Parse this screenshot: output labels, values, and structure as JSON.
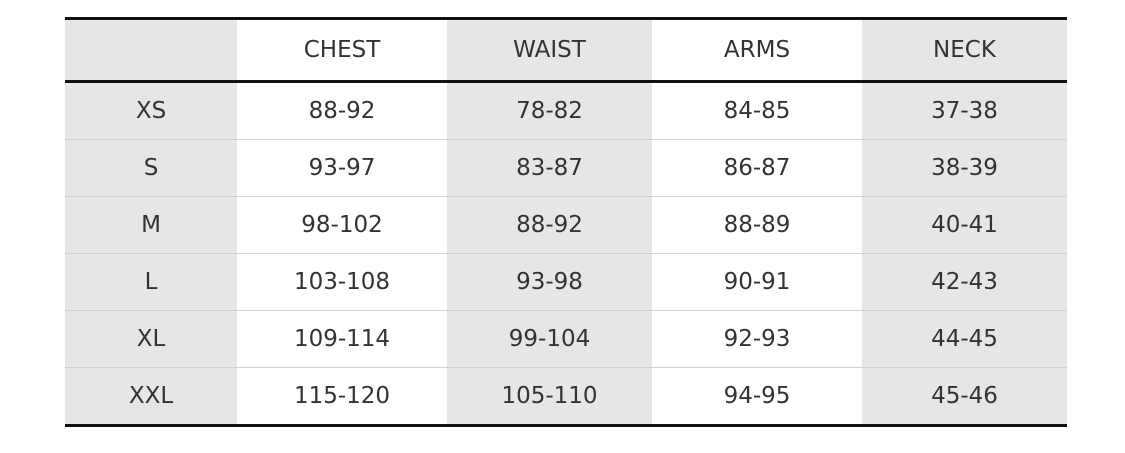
{
  "table": {
    "headers": [
      "",
      "CHEST",
      "WAIST",
      "ARMS",
      "NECK"
    ],
    "rows": [
      [
        "XS",
        "88-92",
        "78-82",
        "84-85",
        "37-38"
      ],
      [
        "S",
        "93-97",
        "83-87",
        "86-87",
        "38-39"
      ],
      [
        "M",
        "98-102",
        "88-92",
        "88-89",
        "40-41"
      ],
      [
        "L",
        "103-108",
        "93-98",
        "90-91",
        "42-43"
      ],
      [
        "XL",
        "109-114",
        "99-104",
        "92-93",
        "44-45"
      ],
      [
        "XXL",
        "115-120",
        "105-110",
        "94-95",
        "45-46"
      ]
    ]
  },
  "colors": {
    "shaded_column": "#e6e6e6",
    "rule": "#111111"
  }
}
